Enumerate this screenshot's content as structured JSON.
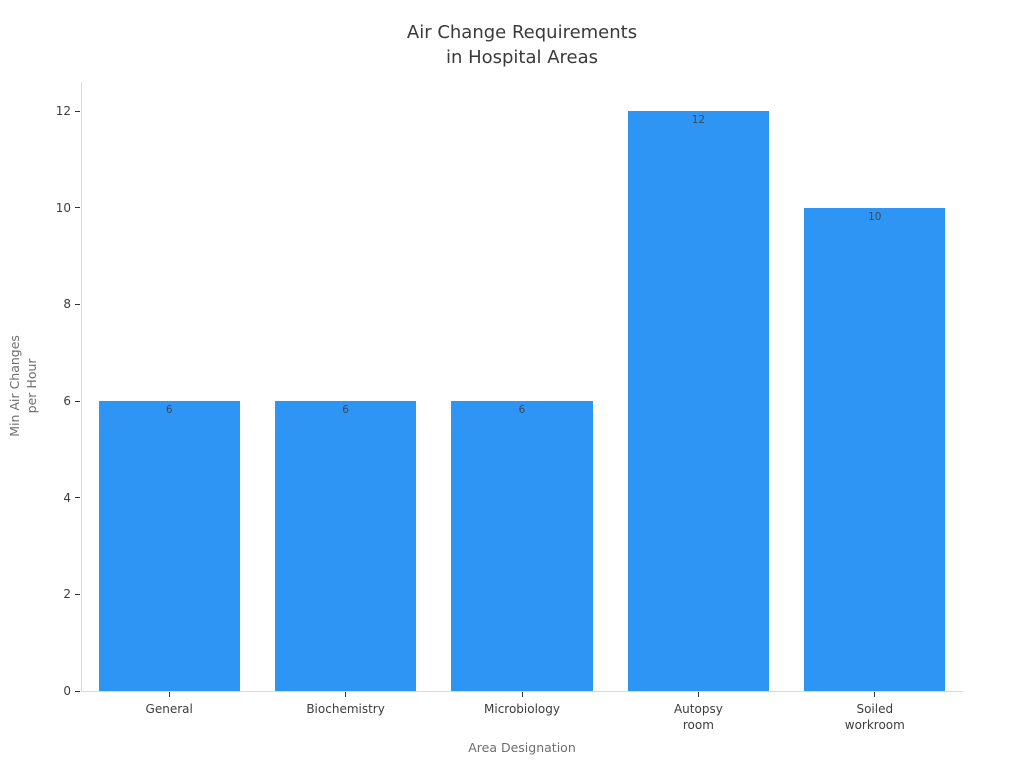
{
  "chart_data": {
    "type": "bar",
    "title": "Air Change Requirements\nin Hospital Areas",
    "categories": [
      "General",
      "Biochemistry",
      "Microbiology",
      "Autopsy\nroom",
      "Soiled\nworkroom"
    ],
    "values": [
      6,
      6,
      6,
      12,
      10
    ],
    "value_labels": [
      "6",
      "6",
      "6",
      "12",
      "10"
    ],
    "xlabel": "Area Designation",
    "ylabel": "Min Air Changes\nper Hour",
    "ylim": [
      0,
      12.6
    ],
    "yticks": [
      0,
      2,
      4,
      6,
      8,
      10,
      12
    ],
    "bar_width_fraction": 0.8,
    "grid": false,
    "legend": null,
    "colors": {
      "bar": "#2f95f5",
      "spine": "#d9d9d9",
      "tick": "#333333",
      "tick_label": "#3d3d3d",
      "title": "#3a3a3a",
      "axis_label": "#6e6e6e",
      "value_label": "#3e4a52",
      "background": "#ffffff"
    }
  }
}
